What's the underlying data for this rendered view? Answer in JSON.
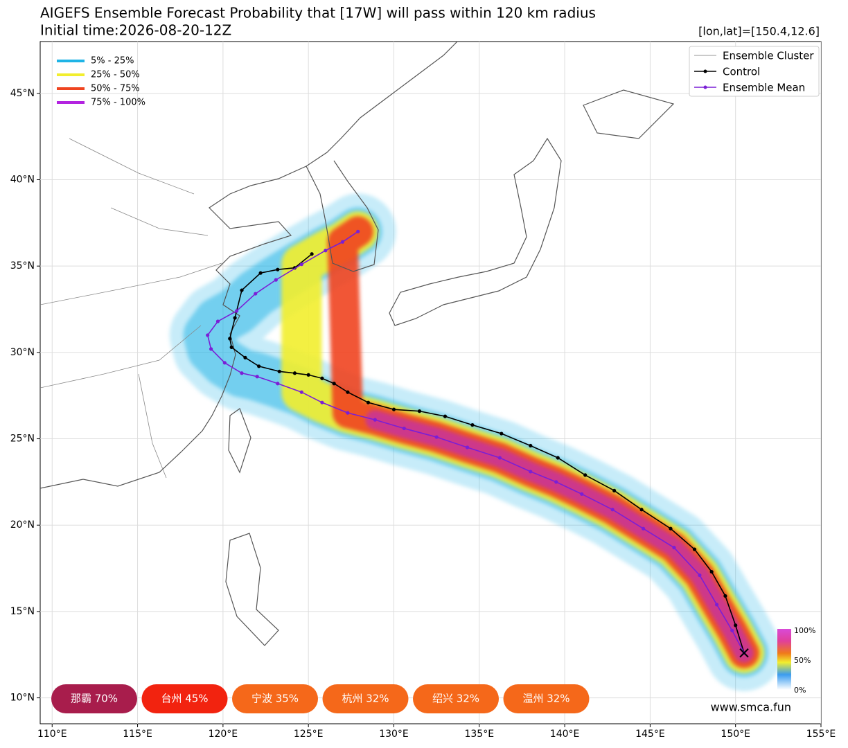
{
  "map": {
    "title": "AIGEFS Ensemble Forecast Probability that [17W] will pass within 120 km radius",
    "subtitle": "Initial time:2026-08-20-12Z",
    "position_label": "[lon,lat]=[150.4,12.6]",
    "xlim": [
      109.3,
      155
    ],
    "ylim": [
      8.5,
      48
    ],
    "lonticks": [
      {
        "value": 110,
        "label": "110°E"
      },
      {
        "value": 115,
        "label": "115°E"
      },
      {
        "value": 120,
        "label": "120°E"
      },
      {
        "value": 125,
        "label": "125°E"
      },
      {
        "value": 130,
        "label": "130°E"
      },
      {
        "value": 135,
        "label": "135°E"
      },
      {
        "value": 140,
        "label": "140°E"
      },
      {
        "value": 145,
        "label": "145°E"
      },
      {
        "value": 150,
        "label": "150°E"
      },
      {
        "value": 155,
        "label": "155°E"
      }
    ],
    "latticks": [
      {
        "value": 10,
        "label": "10°N"
      },
      {
        "value": 15,
        "label": "15°N"
      },
      {
        "value": 20,
        "label": "20°N"
      },
      {
        "value": 25,
        "label": "25°N"
      },
      {
        "value": 30,
        "label": "30°N"
      },
      {
        "value": 35,
        "label": "35°N"
      },
      {
        "value": 40,
        "label": "40°N"
      },
      {
        "value": 45,
        "label": "45°N"
      }
    ],
    "grid": true,
    "prob_legend": [
      {
        "label": "5% - 25%",
        "color": "#1fb4e6"
      },
      {
        "label": "25% - 50%",
        "color": "#f2ee2e"
      },
      {
        "label": "50% - 75%",
        "color": "#ef4420"
      },
      {
        "label": "75% - 100%",
        "color": "#b323e0"
      }
    ],
    "track_legend": [
      "Ensemble Cluster"
    ],
    "tracks": [
      {
        "name": "Control",
        "color": "#000000",
        "lon": [
          150.5,
          150.0,
          149.4,
          148.6,
          147.6,
          146.2,
          144.5,
          142.9,
          141.2,
          139.6,
          138.0,
          136.3,
          134.6,
          133.0,
          131.5,
          130.0,
          128.5,
          127.3,
          126.5,
          125.8,
          125.0,
          124.2,
          123.3,
          122.1,
          121.3,
          120.5,
          120.4,
          120.7,
          121.1,
          122.2,
          123.2,
          124.2,
          125.2
        ],
        "lat": [
          12.6,
          14.2,
          15.9,
          17.3,
          18.6,
          19.8,
          20.9,
          22.0,
          22.9,
          23.9,
          24.6,
          25.3,
          25.8,
          26.3,
          26.6,
          26.7,
          27.1,
          27.7,
          28.2,
          28.5,
          28.7,
          28.8,
          28.9,
          29.2,
          29.7,
          30.3,
          30.8,
          32.0,
          33.6,
          34.6,
          34.8,
          34.9,
          35.7
        ]
      },
      {
        "name": "Ensemble Mean",
        "color": "#7a1fd6",
        "lon": [
          150.5,
          149.8,
          148.9,
          147.9,
          146.4,
          144.6,
          142.8,
          141.0,
          139.5,
          138.0,
          136.2,
          134.3,
          132.5,
          130.6,
          128.9,
          127.3,
          125.8,
          124.6,
          123.2,
          122.0,
          121.1,
          120.1,
          119.3,
          119.1,
          119.7,
          120.8,
          121.9,
          123.1,
          124.6,
          126.0,
          127.0,
          127.9
        ],
        "lat": [
          12.6,
          13.9,
          15.4,
          17.1,
          18.7,
          19.8,
          20.9,
          21.8,
          22.5,
          23.1,
          23.9,
          24.5,
          25.1,
          25.6,
          26.1,
          26.5,
          27.1,
          27.7,
          28.2,
          28.6,
          28.8,
          29.4,
          30.2,
          31.0,
          31.8,
          32.4,
          33.4,
          34.2,
          35.1,
          35.9,
          36.4,
          37.0
        ]
      }
    ],
    "colorbar_labels": [
      "100%",
      "50%",
      "0%"
    ],
    "cities": [
      {
        "label": "那霸 70%",
        "color": "#a81d4c"
      },
      {
        "label": "台州 45%",
        "color": "#f2230f"
      },
      {
        "label": "宁波 35%",
        "color": "#f5681a"
      },
      {
        "label": "杭州 32%",
        "color": "#f5681a"
      },
      {
        "label": "绍兴 32%",
        "color": "#f5681a"
      },
      {
        "label": "温州 32%",
        "color": "#f5681a"
      }
    ],
    "credit": "www.smca.fun"
  }
}
